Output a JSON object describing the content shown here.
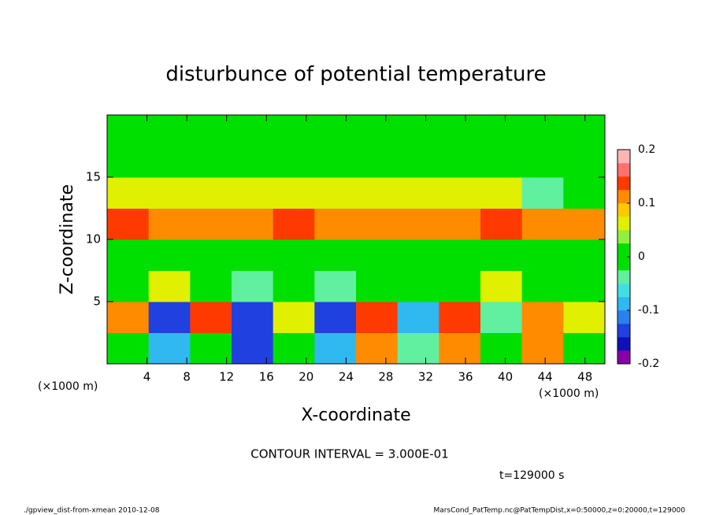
{
  "chart_data": {
    "type": "heatmap",
    "title": "disturbunce of potential temperature",
    "x_label": "X-coordinate",
    "y_label": "Z-coordinate",
    "x_unit_left": "(×1000 m)",
    "x_unit_right": "(×1000 m)",
    "contour_note": "CONTOUR INTERVAL = 3.000E-01",
    "time_note": "t=129000 s",
    "footer_left": "./gpview_dist-from-xmean  2010-12-08",
    "footer_right": "MarsCond_PatTemp.nc@PatTempDist,x=0:50000,z=0:20000,t=129000",
    "xlim": [
      0,
      50
    ],
    "ylim": [
      0,
      20
    ],
    "xticks": [
      4,
      8,
      12,
      16,
      20,
      24,
      28,
      32,
      36,
      40,
      44,
      48
    ],
    "yticks": [
      5,
      10,
      15
    ],
    "clim": [
      -0.2,
      0.2
    ],
    "cticks": [
      -0.2,
      -0.1,
      0,
      0.1,
      0.2
    ],
    "colors": [
      "#8a00a8",
      "#1010b8",
      "#2040e0",
      "#2a80f0",
      "#30b8f0",
      "#40e0e0",
      "#60f0a0",
      "#00e000",
      "#00e000",
      "#90f040",
      "#e0f000",
      "#ffc800",
      "#ff8c00",
      "#ff3a00",
      "#ff7070",
      "#ffb4b4"
    ],
    "z": [
      [
        0,
        -0.1,
        0,
        -0.15,
        0,
        -0.1,
        0.1,
        -0.05,
        0.1,
        0,
        0.1,
        0
      ],
      [
        0.1,
        -0.15,
        0.15,
        -0.15,
        0.05,
        -0.15,
        0.15,
        -0.1,
        0.15,
        -0.05,
        0.1,
        0.05
      ],
      [
        0,
        0.05,
        0,
        -0.05,
        0,
        -0.05,
        0,
        0,
        0,
        0.05,
        0,
        0
      ],
      [
        0,
        0,
        0,
        0,
        0,
        0,
        0,
        0,
        0,
        0,
        0,
        0
      ],
      [
        0.15,
        0.1,
        0.1,
        0.1,
        0.15,
        0.1,
        0.1,
        0.1,
        0.1,
        0.15,
        0.1,
        0.1
      ],
      [
        0.05,
        0.05,
        0.05,
        0.05,
        0.05,
        0.05,
        0.05,
        0.05,
        0.05,
        0.05,
        -0.05,
        0
      ],
      [
        0,
        0,
        0,
        0,
        0,
        0,
        0,
        0,
        0,
        0,
        0,
        0
      ],
      [
        0,
        0,
        0,
        0,
        0,
        0,
        0,
        0,
        0,
        0,
        0,
        0
      ]
    ]
  }
}
